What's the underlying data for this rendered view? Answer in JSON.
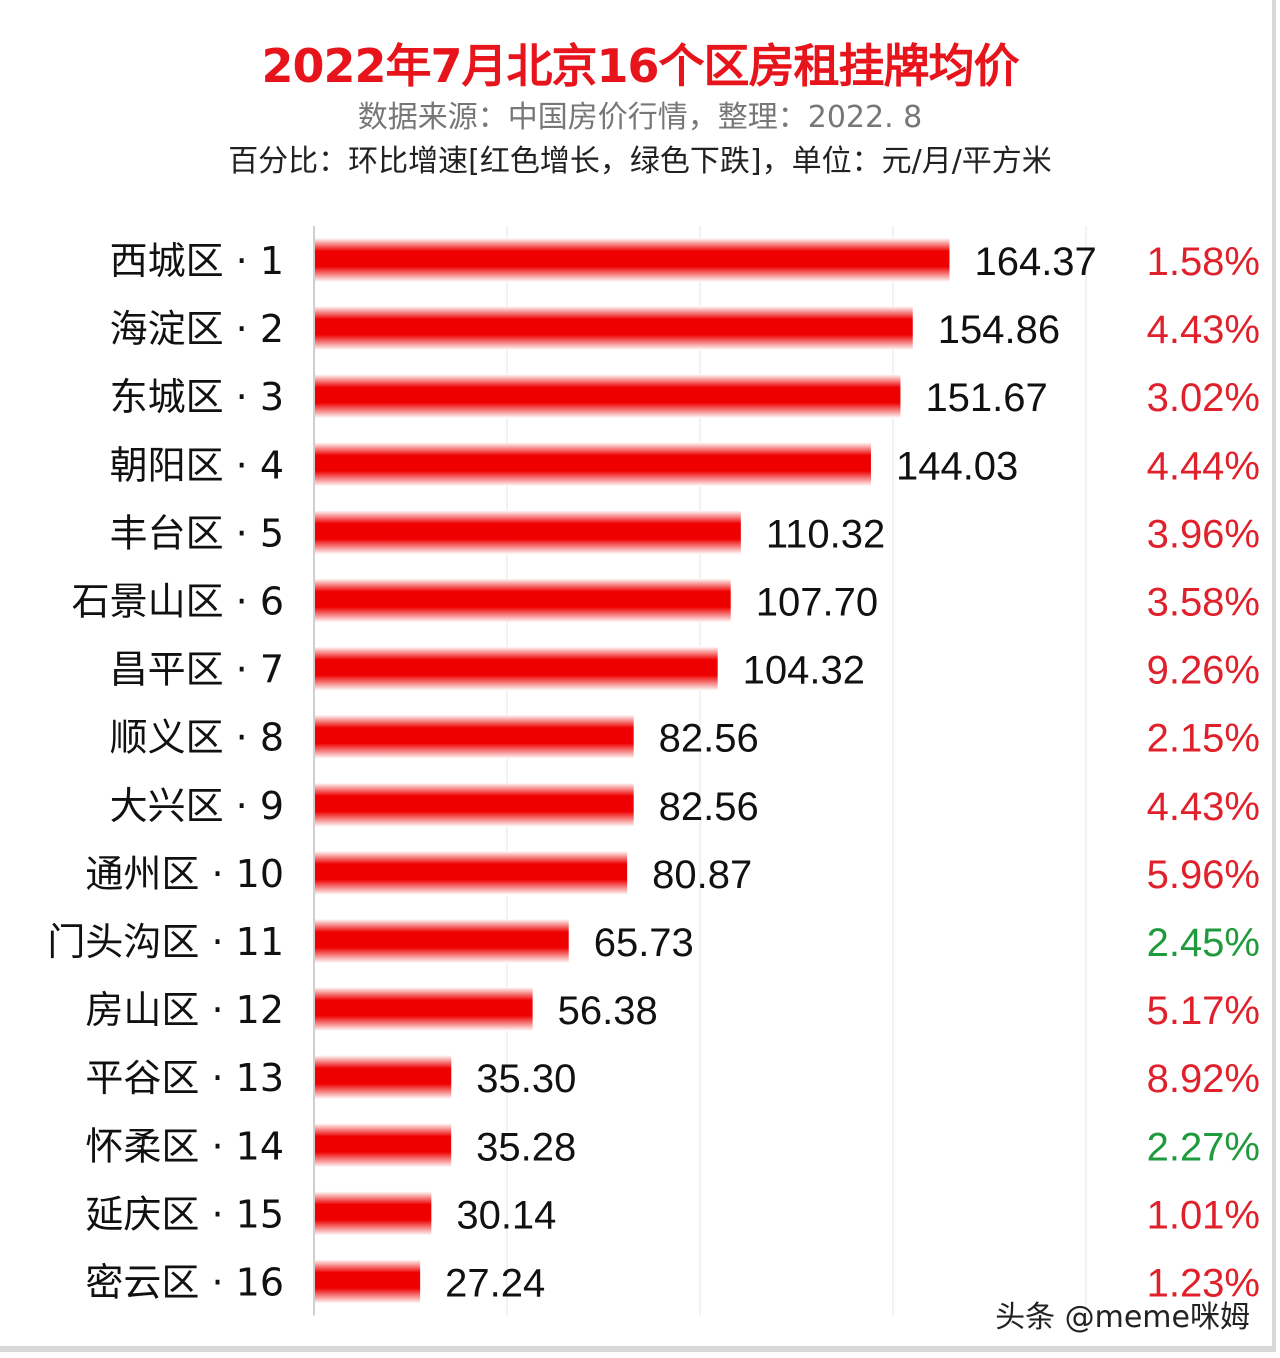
{
  "chart_data": {
    "type": "bar",
    "orientation": "horizontal",
    "title": "2022年7月北京16个区房租挂牌均价",
    "subtitle": "数据来源：中国房价行情，整理：2022. 8",
    "note": "百分比：环比增速[红色增长，绿色下跌]，单位：元/月/平方米",
    "categories": [
      "西城区 · 1",
      "海淀区 · 2",
      "东城区 · 3",
      "朝阳区 · 4",
      "丰台区 · 5",
      "石景山区 · 6",
      "昌平区 · 7",
      "顺义区 · 8",
      "大兴区 · 9",
      "通州区 · 10",
      "门头沟区 · 11",
      "房山区 · 12",
      "平谷区 · 13",
      "怀柔区 · 14",
      "延庆区 · 15",
      "密云区 · 16"
    ],
    "values": [
      164.37,
      154.86,
      151.67,
      144.03,
      110.32,
      107.7,
      104.32,
      82.56,
      82.56,
      80.87,
      65.73,
      56.38,
      35.3,
      35.28,
      30.14,
      27.24
    ],
    "value_labels": [
      "164.37",
      "154.86",
      "151.67",
      "144.03",
      "110.32",
      "107.70",
      "104.32",
      "82.56",
      "82.56",
      "80.87",
      "65.73",
      "56.38",
      "35.30",
      "35.28",
      "30.14",
      "27.24"
    ],
    "change_labels": [
      "1.58%",
      "4.43%",
      "3.02%",
      "4.44%",
      "3.96%",
      "3.58%",
      "9.26%",
      "2.15%",
      "4.43%",
      "5.96%",
      "2.45%",
      "5.17%",
      "8.92%",
      "2.27%",
      "1.01%",
      "1.23%"
    ],
    "change_direction": [
      "up",
      "up",
      "up",
      "up",
      "up",
      "up",
      "up",
      "up",
      "up",
      "up",
      "down",
      "up",
      "up",
      "down",
      "up",
      "up"
    ],
    "xlim": [
      0,
      200
    ],
    "grid": true,
    "legend": "none",
    "colors": {
      "bar": "#ee0000",
      "up": "#e0202a",
      "down": "#1f9a3c",
      "title": "#e8141c"
    }
  },
  "watermark": "头条 @meme咪姆"
}
